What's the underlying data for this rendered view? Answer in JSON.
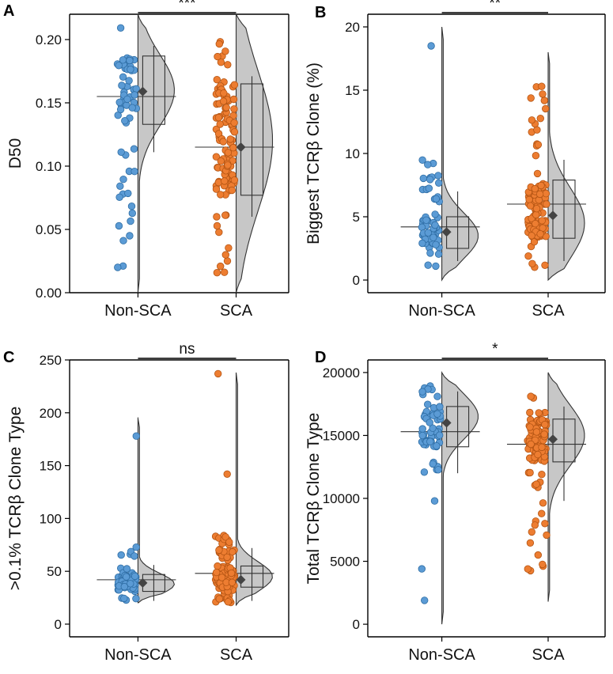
{
  "colors": {
    "non_sca": "#5b9bd5",
    "non_sca_stroke": "#2e6da4",
    "sca": "#ed7d31",
    "sca_stroke": "#b35413",
    "violin": "#c7c7c7"
  },
  "chart_data": [
    {
      "panel": "A",
      "type": "raincloud",
      "ylabel": "D50",
      "categories": [
        "Non-SCA",
        "SCA"
      ],
      "ylim": [
        0,
        0.22
      ],
      "yticks": [
        0.0,
        0.05,
        0.1,
        0.15,
        0.2
      ],
      "ytick_labels": [
        "0.00",
        "0.05",
        "0.10",
        "0.15",
        "0.20"
      ],
      "significance": "***",
      "groups": [
        {
          "name": "Non-SCA",
          "n_points": 60,
          "min": 0.02,
          "max": 0.21,
          "median": 0.155,
          "mean": 0.159,
          "q1": 0.133,
          "q3": 0.187,
          "whisker_low": 0.111,
          "whisker_high": 0.195,
          "violin_min": 0.0,
          "violin_max": 0.22,
          "density_peak": 0.16,
          "density_width": 0.028,
          "outliers": [
            0.045,
            0.02
          ]
        },
        {
          "name": "SCA",
          "n_points": 110,
          "min": 0.01,
          "max": 0.2,
          "median": 0.115,
          "mean": 0.115,
          "q1": 0.077,
          "q3": 0.165,
          "whisker_low": 0.06,
          "whisker_high": 0.171,
          "violin_min": 0.0,
          "violin_max": 0.22,
          "density_peak": 0.12,
          "density_width": 0.055,
          "outliers": []
        }
      ]
    },
    {
      "panel": "B",
      "type": "raincloud",
      "ylabel": "Biggest TCRβ Clone (%)",
      "categories": [
        "Non-SCA",
        "SCA"
      ],
      "ylim": [
        -1,
        21
      ],
      "yticks": [
        0,
        5,
        10,
        15,
        20
      ],
      "ytick_labels": [
        "0",
        "5",
        "10",
        "15",
        "20"
      ],
      "significance": "**",
      "groups": [
        {
          "name": "Non-SCA",
          "n_points": 60,
          "min": 1.0,
          "max": 9.5,
          "median": 4.2,
          "mean": 3.8,
          "q1": 2.5,
          "q3": 5.0,
          "whisker_low": 1.5,
          "whisker_high": 7.0,
          "violin_min": 0.0,
          "violin_max": 20.0,
          "density_peak": 3.5,
          "density_width": 1.8,
          "outliers": [
            18.5
          ]
        },
        {
          "name": "SCA",
          "n_points": 110,
          "min": 1.0,
          "max": 15.9,
          "median": 6.0,
          "mean": 5.1,
          "q1": 3.3,
          "q3": 7.9,
          "whisker_low": 1.5,
          "whisker_high": 9.5,
          "violin_min": 0.0,
          "violin_max": 18.0,
          "density_peak": 4.5,
          "density_width": 2.8,
          "outliers": []
        }
      ]
    },
    {
      "panel": "C",
      "type": "raincloud",
      "ylabel": ">0.1% TCRβ Clone Type",
      "categories": [
        "Non-SCA",
        "SCA"
      ],
      "ylim": [
        -12,
        250
      ],
      "yticks": [
        0,
        50,
        100,
        150,
        200,
        250
      ],
      "ytick_labels": [
        "0",
        "50",
        "100",
        "150",
        "200",
        "250"
      ],
      "significance": "ns",
      "groups": [
        {
          "name": "Non-SCA",
          "n_points": 60,
          "min": 20,
          "max": 76,
          "median": 42,
          "mean": 39,
          "q1": 31,
          "q3": 47,
          "whisker_low": 22,
          "whisker_high": 56,
          "violin_min": 20,
          "violin_max": 195,
          "density_peak": 38,
          "density_width": 10,
          "outliers": [
            178
          ]
        },
        {
          "name": "SCA",
          "n_points": 110,
          "min": 20,
          "max": 85,
          "median": 48,
          "mean": 42,
          "q1": 35,
          "q3": 55,
          "whisker_low": 22,
          "whisker_high": 72,
          "violin_min": 18,
          "violin_max": 238,
          "density_peak": 45,
          "density_width": 14,
          "outliers": [
            142,
            237
          ]
        }
      ]
    },
    {
      "panel": "D",
      "type": "raincloud",
      "ylabel": "Total TCRβ Clone Type",
      "categories": [
        "Non-SCA",
        "SCA"
      ],
      "ylim": [
        -1000,
        21000
      ],
      "yticks": [
        0,
        5000,
        10000,
        15000,
        20000
      ],
      "ytick_labels": [
        "0",
        "5000",
        "10000",
        "15000",
        "20000"
      ],
      "significance": "*",
      "groups": [
        {
          "name": "Non-SCA",
          "n_points": 60,
          "min": 12000,
          "max": 19000,
          "median": 15300,
          "mean": 16000,
          "q1": 14100,
          "q3": 17300,
          "whisker_low": 12000,
          "whisker_high": 18500,
          "violin_min": 0,
          "violin_max": 20000,
          "density_peak": 16500,
          "density_width": 1800,
          "outliers": [
            9800,
            4400,
            1900
          ]
        },
        {
          "name": "SCA",
          "n_points": 110,
          "min": 4000,
          "max": 18900,
          "median": 14300,
          "mean": 14700,
          "q1": 12900,
          "q3": 16300,
          "whisker_low": 9800,
          "whisker_high": 17300,
          "violin_min": 1800,
          "violin_max": 20000,
          "density_peak": 15000,
          "density_width": 2400,
          "outliers": []
        }
      ]
    }
  ]
}
